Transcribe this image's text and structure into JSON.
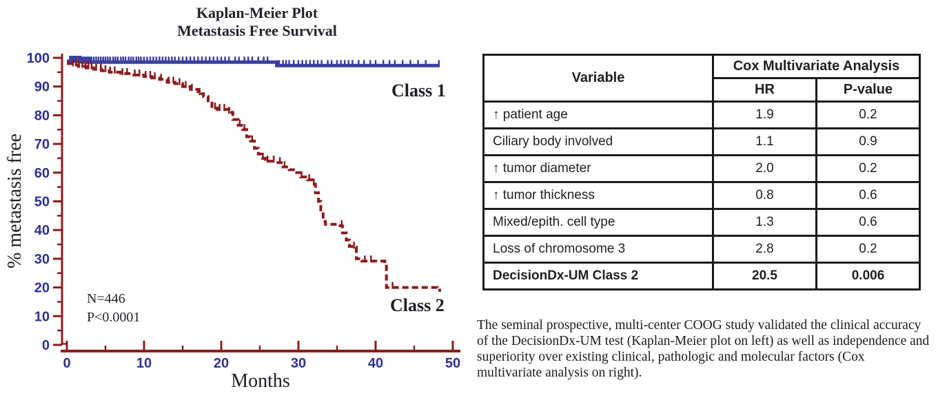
{
  "figure": {
    "km": {
      "title_line1": "Kaplan-Meier Plot",
      "title_line2": "Metastasis Free Survival",
      "ylabel": "% metastasis free",
      "xlabel": "Months",
      "n_label": "N=446",
      "p_label": "P<0.0001",
      "class1_label": "Class 1",
      "class2_label": "Class 2"
    },
    "table": {
      "variable_header": "Variable",
      "group_header": "Cox Multivariate Analysis",
      "hr_header": "HR",
      "p_header": "P-value",
      "rows": [
        {
          "variable": "↑ patient age",
          "hr": "1.9",
          "p": "0.2",
          "bold": false
        },
        {
          "variable": "Ciliary body involved",
          "hr": "1.1",
          "p": "0.9",
          "bold": false
        },
        {
          "variable": "↑ tumor diameter",
          "hr": "2.0",
          "p": "0.2",
          "bold": false
        },
        {
          "variable": "↑ tumor thickness",
          "hr": "0.8",
          "p": "0.6",
          "bold": false
        },
        {
          "variable": "Mixed/epith. cell type",
          "hr": "1.3",
          "p": "0.6",
          "bold": false
        },
        {
          "variable": "Loss of chromosome 3",
          "hr": "2.8",
          "p": "0.2",
          "bold": false
        },
        {
          "variable": "DecisionDx-UM Class 2",
          "hr": "20.5",
          "p": "0.006",
          "bold": true
        }
      ]
    },
    "caption": "The seminal prospective, multi-center COOG study validated the clinical accuracy of the DecisionDx-UM test (Kaplan-Meier plot on left) as well as independence and superiority over existing clinical, pathologic and molecular factors (Cox multivariate analysis on right)."
  },
  "colors": {
    "class1_blue": "#3a3f9f",
    "class2_maroon": "#8b1c1c",
    "axis_maroon": "#8b1c1c",
    "tick_label_navy": "#2e3192",
    "ink": "#26222d"
  },
  "chart_data": {
    "type": "line",
    "subtype": "kaplan-meier step curves",
    "title": "Kaplan-Meier Plot — Metastasis Free Survival",
    "xlabel": "Months",
    "ylabel": "% metastasis free",
    "xlim": [
      0,
      50
    ],
    "ylim": [
      0,
      100
    ],
    "x_ticks": [
      0,
      10,
      20,
      30,
      40,
      50
    ],
    "x_minor_ticks": [
      5,
      15,
      25,
      35,
      45
    ],
    "y_ticks": [
      0,
      10,
      20,
      30,
      40,
      50,
      60,
      70,
      80,
      90,
      100
    ],
    "y_minor_ticks": [
      5,
      15,
      25,
      35,
      45,
      55,
      65,
      75,
      85,
      95
    ],
    "grid": false,
    "legend_position": "inline-labels",
    "annotations": [
      "N=446",
      "P<0.0001"
    ],
    "series": [
      {
        "name": "Class 1",
        "style": "solid",
        "color": "#3a3f9f",
        "points": [
          [
            0,
            98.8
          ],
          [
            2,
            98.5
          ],
          [
            27.2,
            97.3
          ],
          [
            48.3,
            97.3
          ]
        ],
        "censor_months": [
          0.4,
          0.6,
          0.8,
          1.0,
          1.2,
          1.4,
          1.6,
          1.8,
          2.0,
          2.2,
          2.4,
          2.6,
          2.8,
          3.0,
          3.2,
          3.5,
          3.8,
          4.1,
          4.4,
          4.7,
          5.0,
          5.3,
          5.6,
          6.0,
          6.3,
          6.6,
          7.0,
          7.3,
          7.6,
          8.0,
          8.3,
          8.6,
          9.0,
          9.3,
          9.6,
          10.0,
          10.4,
          10.8,
          11.2,
          11.6,
          12.0,
          12.4,
          12.8,
          13.2,
          13.6,
          14.0,
          14.5,
          15.0,
          15.5,
          16.0,
          16.5,
          17.0,
          17.5,
          18.0,
          18.5,
          19.0,
          19.5,
          20.0,
          20.5,
          21.0,
          21.8,
          22.3,
          23.0,
          23.5,
          24.0,
          24.8,
          25.5,
          26.0,
          27.5,
          28.0,
          28.4,
          28.8,
          29.4,
          30.0,
          30.5,
          31.0,
          31.5,
          32.0,
          32.5,
          33.0,
          33.8,
          34.3,
          35.0,
          35.5,
          36.0,
          36.5,
          37.0,
          37.8,
          38.5,
          39.3,
          40.0,
          41.0,
          41.8,
          42.5,
          43.5,
          44.5,
          45.5,
          46.5,
          48.2
        ]
      },
      {
        "name": "Class 2",
        "style": "dashed",
        "color": "#8b1c1c",
        "points": [
          [
            0,
            98
          ],
          [
            0.7,
            97.5
          ],
          [
            1.5,
            97
          ],
          [
            2.5,
            96.5
          ],
          [
            3.5,
            96
          ],
          [
            4.5,
            95.5
          ],
          [
            5.5,
            95
          ],
          [
            7,
            94.5
          ],
          [
            8.5,
            94
          ],
          [
            10,
            93.5
          ],
          [
            11,
            93
          ],
          [
            12,
            92.5
          ],
          [
            13,
            91.5
          ],
          [
            14,
            91
          ],
          [
            15,
            90
          ],
          [
            16,
            89
          ],
          [
            17,
            87.5
          ],
          [
            17.7,
            86.5
          ],
          [
            18.3,
            85
          ],
          [
            18.8,
            82.5
          ],
          [
            19.5,
            82
          ],
          [
            21,
            81
          ],
          [
            21.5,
            78.5
          ],
          [
            22.2,
            76.5
          ],
          [
            22.8,
            75
          ],
          [
            23.3,
            72.5
          ],
          [
            23.8,
            71
          ],
          [
            24.3,
            68.5
          ],
          [
            24.8,
            66.5
          ],
          [
            25.2,
            65
          ],
          [
            25.7,
            64
          ],
          [
            27.1,
            63.5
          ],
          [
            28,
            62
          ],
          [
            28.8,
            61
          ],
          [
            29.6,
            60
          ],
          [
            30.3,
            58.5
          ],
          [
            31.2,
            57.5
          ],
          [
            31.8,
            56
          ],
          [
            32.2,
            53
          ],
          [
            32.6,
            50
          ],
          [
            32.9,
            46.5
          ],
          [
            33.2,
            43
          ],
          [
            33.5,
            42
          ],
          [
            35.4,
            41.5
          ],
          [
            35.7,
            39
          ],
          [
            36.2,
            36.5
          ],
          [
            36.6,
            34.3
          ],
          [
            37.1,
            34
          ],
          [
            37.5,
            30
          ],
          [
            38.2,
            29.2
          ],
          [
            41.2,
            29
          ],
          [
            41.4,
            20
          ],
          [
            48,
            19.8
          ],
          [
            48.3,
            18.5
          ]
        ],
        "censor_months": [
          0.8,
          1.2,
          1.6,
          2.0,
          2.4,
          2.8,
          3.2,
          3.8,
          4.4,
          5.0,
          5.6,
          6.2,
          7.2,
          7.8,
          8.8,
          9.4,
          10.2,
          10.8,
          11.4,
          12.2,
          13.2,
          13.8,
          14.6,
          15.4,
          16.2,
          17.2,
          19.2,
          19.8,
          20.4,
          21.0,
          22.4,
          23.0,
          24.0,
          25.4,
          26.0,
          26.8,
          27.6,
          28.2,
          30.4,
          31.4,
          32.0,
          35.6,
          37.2,
          38.6,
          39.4,
          42.2
        ]
      }
    ],
    "sample_size_note": "N=446",
    "p_value_note": "P<0.0001"
  }
}
